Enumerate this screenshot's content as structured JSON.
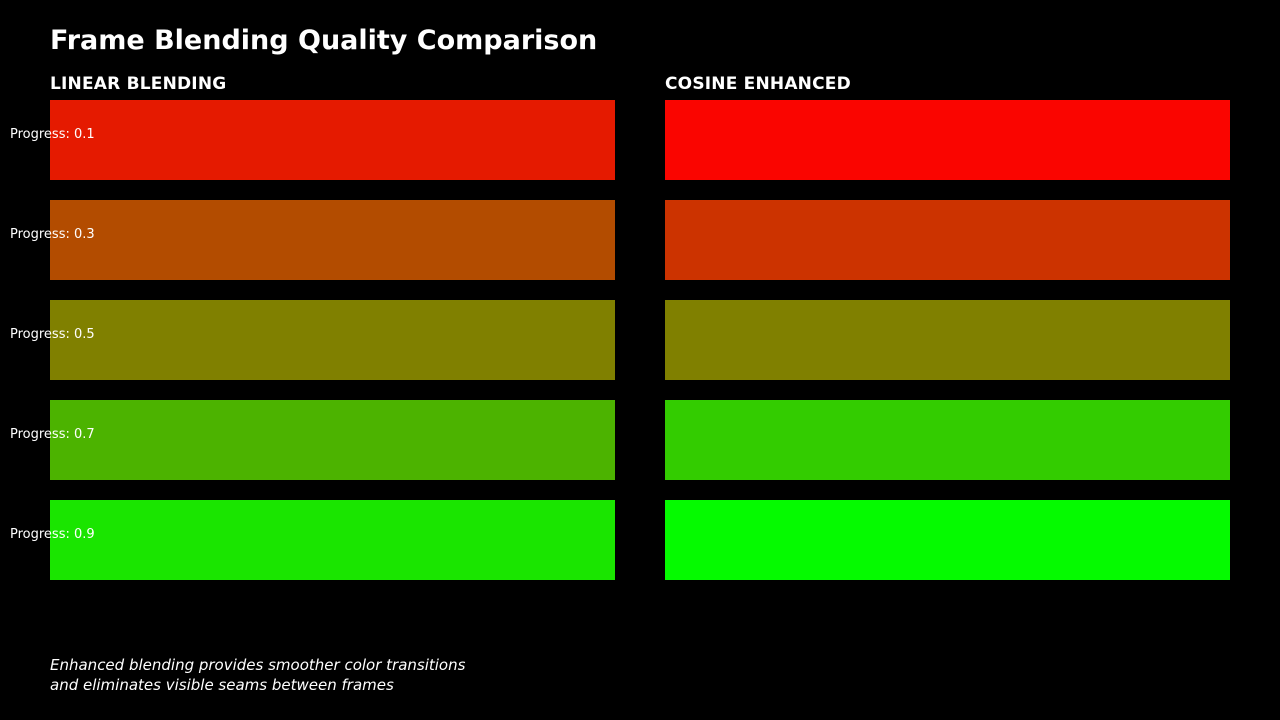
{
  "title": "Frame Blending Quality Comparison",
  "columns": {
    "linear": {
      "heading": "LINEAR BLENDING"
    },
    "cosine": {
      "heading": "COSINE ENHANCED"
    }
  },
  "rows": [
    {
      "label": "Progress: 0.1",
      "linear_color": "#e51a00",
      "cosine_color": "#fa0500"
    },
    {
      "label": "Progress: 0.3",
      "linear_color": "#b34c00",
      "cosine_color": "#cc3300"
    },
    {
      "label": "Progress: 0.5",
      "linear_color": "#808000",
      "cosine_color": "#808000"
    },
    {
      "label": "Progress: 0.7",
      "linear_color": "#4cb300",
      "cosine_color": "#33cc00"
    },
    {
      "label": "Progress: 0.9",
      "linear_color": "#1ae500",
      "cosine_color": "#05fa00"
    }
  ],
  "footnote": {
    "line1": "Enhanced blending provides smoother color transitions",
    "line2": "and eliminates visible seams between frames"
  }
}
